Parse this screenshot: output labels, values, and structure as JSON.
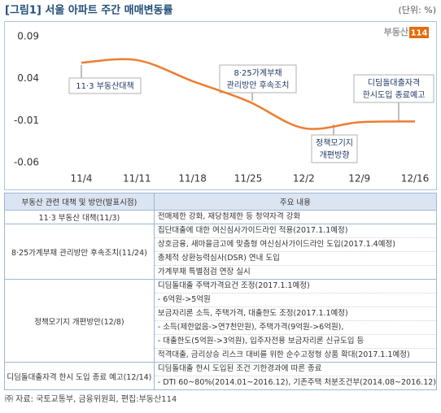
{
  "header": {
    "title": "[그림1] 서울 아파트 주간 매매변동률",
    "unit": "(단위: %)"
  },
  "chart_data": {
    "type": "line",
    "x": [
      "11/4",
      "11/11",
      "11/18",
      "11/25",
      "12/2",
      "12/9",
      "12/16"
    ],
    "series": [
      {
        "color": "#ed7d31",
        "values": [
          0.059,
          0.062,
          0.037,
          0.013,
          -0.019,
          -0.012,
          -0.011
        ]
      }
    ],
    "ylim": [
      -0.06,
      0.09
    ],
    "yticks": [
      0.09,
      0.04,
      -0.01,
      -0.06
    ],
    "annotations": [
      [
        "11·3 부동산대책"
      ],
      [
        "8·25가계부채",
        "관리방안 후속조치"
      ],
      [
        "디딤돌대출자격",
        "한시도입 종료예고"
      ],
      [
        "정책모기지",
        "개편방향"
      ]
    ],
    "logo": {
      "name": "부동산",
      "number": "114"
    }
  },
  "table": {
    "columns": [
      "부동산 관련 대책 및 방안(발표시점)",
      "주요 내용"
    ],
    "rows": [
      {
        "label": "11·3 부동산 대책(11/3)",
        "items": [
          "전매제한 강화, 재당첨제한 등 청약자격 강화"
        ]
      },
      {
        "label": "8·25가계부채 관리방안 후속조치(11/24)",
        "items": [
          "집단대출에 대한 여신심사가이드라인 적용(2017.1.1예정)",
          "상호금융, 새마을금고에 맞춤형 여신심사가이드라인 도입(2017.1.4예정)",
          "총체적 상환능력심사(DSR) 연내 도입",
          "가계부채 특별점검 연장 실시"
        ]
      },
      {
        "label": "정책모기지 개편방안(12/8)",
        "items": [
          "디딤돌대출 주택가격요건 조정(2017.1.1예정)",
          "- 6억원->5억원",
          "보금자리론 소득, 주택가격, 대출한도 조정(2017.1.1예정)",
          "- 소득(제한없음->연7천만원), 주택가격(9억원->6억원),",
          "- 대출한도(5억원->3억원), 입주자전용 보금자리론 신규도입 등",
          "적격대출, 금리상승 리스크 대비를 위한 순수고정형 상품 확대(2017.1.1예정)"
        ]
      },
      {
        "label": "디딤돌대출자격 한시 도입 종료 예고(12/14)",
        "items": [
          "디딤돌대출 한시 도입된 조건 기한경과에 따른 종료",
          "- DTI 60~80%(2014.01~2016.12), 기존주택 처분조건부(2014.08~2016.12)"
        ]
      }
    ]
  },
  "source": "㈜ 자료: 국토교통부, 금융위원회, 편집:부동산114"
}
